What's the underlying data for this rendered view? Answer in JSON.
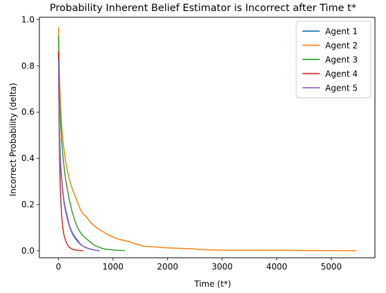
{
  "chart_data": {
    "type": "line",
    "title": "Probability Inherent Belief Estimator is Incorrect after Time t*",
    "xlabel": "Time (t*)",
    "ylabel": "Incorrect Probability (delta)",
    "xlim": [
      -350,
      5800
    ],
    "ylim": [
      -0.03,
      1.01
    ],
    "xticks": [
      0,
      1000,
      2000,
      3000,
      4000,
      5000
    ],
    "yticks": [
      0.0,
      0.2,
      0.4,
      0.6,
      0.8,
      1.0
    ],
    "xtick_labels": [
      "0",
      "1000",
      "2000",
      "3000",
      "4000",
      "5000"
    ],
    "ytick_labels": [
      "0.0",
      "0.2",
      "0.4",
      "0.6",
      "0.8",
      "1.0"
    ],
    "grid": false,
    "legend_position": "top-right",
    "series": [
      {
        "name": "Agent 1",
        "color": "#1f77b4",
        "x": [
          0,
          10,
          20,
          40,
          60,
          80,
          100,
          130,
          160,
          200,
          250,
          300,
          350,
          400,
          450,
          500,
          550,
          600,
          650,
          700,
          740
        ],
        "y": [
          0.86,
          0.62,
          0.5,
          0.38,
          0.31,
          0.26,
          0.22,
          0.18,
          0.15,
          0.11,
          0.08,
          0.06,
          0.045,
          0.03,
          0.02,
          0.015,
          0.01,
          0.007,
          0.004,
          0.002,
          0.0
        ]
      },
      {
        "name": "Agent 2",
        "color": "#ff7f0e",
        "x": [
          0,
          10,
          20,
          40,
          60,
          80,
          100,
          130,
          160,
          200,
          250,
          300,
          350,
          400,
          450,
          500,
          600,
          700,
          800,
          900,
          1000,
          1100,
          1200,
          1300,
          1400,
          1500,
          1550,
          1700,
          1900,
          2100,
          2300,
          2500,
          2600,
          2800,
          3000,
          3500,
          4000,
          4500,
          5000,
          5450
        ],
        "y": [
          0.965,
          0.85,
          0.74,
          0.62,
          0.54,
          0.48,
          0.44,
          0.39,
          0.35,
          0.31,
          0.27,
          0.24,
          0.21,
          0.18,
          0.16,
          0.15,
          0.12,
          0.1,
          0.085,
          0.07,
          0.06,
          0.05,
          0.045,
          0.04,
          0.03,
          0.025,
          0.02,
          0.018,
          0.014,
          0.012,
          0.01,
          0.008,
          0.005,
          0.004,
          0.003,
          0.0025,
          0.002,
          0.0015,
          0.001,
          0.0005
        ]
      },
      {
        "name": "Agent 3",
        "color": "#2ca02c",
        "x": [
          0,
          10,
          20,
          40,
          60,
          80,
          100,
          130,
          160,
          200,
          250,
          300,
          350,
          400,
          450,
          500,
          550,
          600,
          650,
          700,
          750,
          800,
          900,
          1000,
          1100,
          1210
        ],
        "y": [
          0.93,
          0.8,
          0.67,
          0.55,
          0.47,
          0.41,
          0.37,
          0.31,
          0.27,
          0.22,
          0.17,
          0.13,
          0.1,
          0.08,
          0.065,
          0.055,
          0.045,
          0.035,
          0.025,
          0.02,
          0.015,
          0.01,
          0.006,
          0.004,
          0.002,
          0.001
        ]
      },
      {
        "name": "Agent 4",
        "color": "#d62728",
        "x": [
          0,
          10,
          20,
          30,
          40,
          60,
          80,
          100,
          130,
          160,
          200,
          250,
          300,
          350,
          400,
          450
        ],
        "y": [
          0.86,
          0.55,
          0.4,
          0.3,
          0.23,
          0.15,
          0.1,
          0.07,
          0.045,
          0.028,
          0.015,
          0.008,
          0.004,
          0.002,
          0.001,
          0.0
        ]
      },
      {
        "name": "Agent 5",
        "color": "#9467bd",
        "x": [
          0,
          10,
          20,
          40,
          60,
          80,
          100,
          130,
          160,
          200,
          250,
          300,
          350,
          400,
          450,
          500,
          550,
          600,
          650,
          700,
          750
        ],
        "y": [
          0.82,
          0.58,
          0.47,
          0.36,
          0.3,
          0.25,
          0.21,
          0.17,
          0.14,
          0.105,
          0.075,
          0.055,
          0.04,
          0.028,
          0.02,
          0.014,
          0.009,
          0.006,
          0.004,
          0.002,
          0.001
        ]
      }
    ]
  }
}
